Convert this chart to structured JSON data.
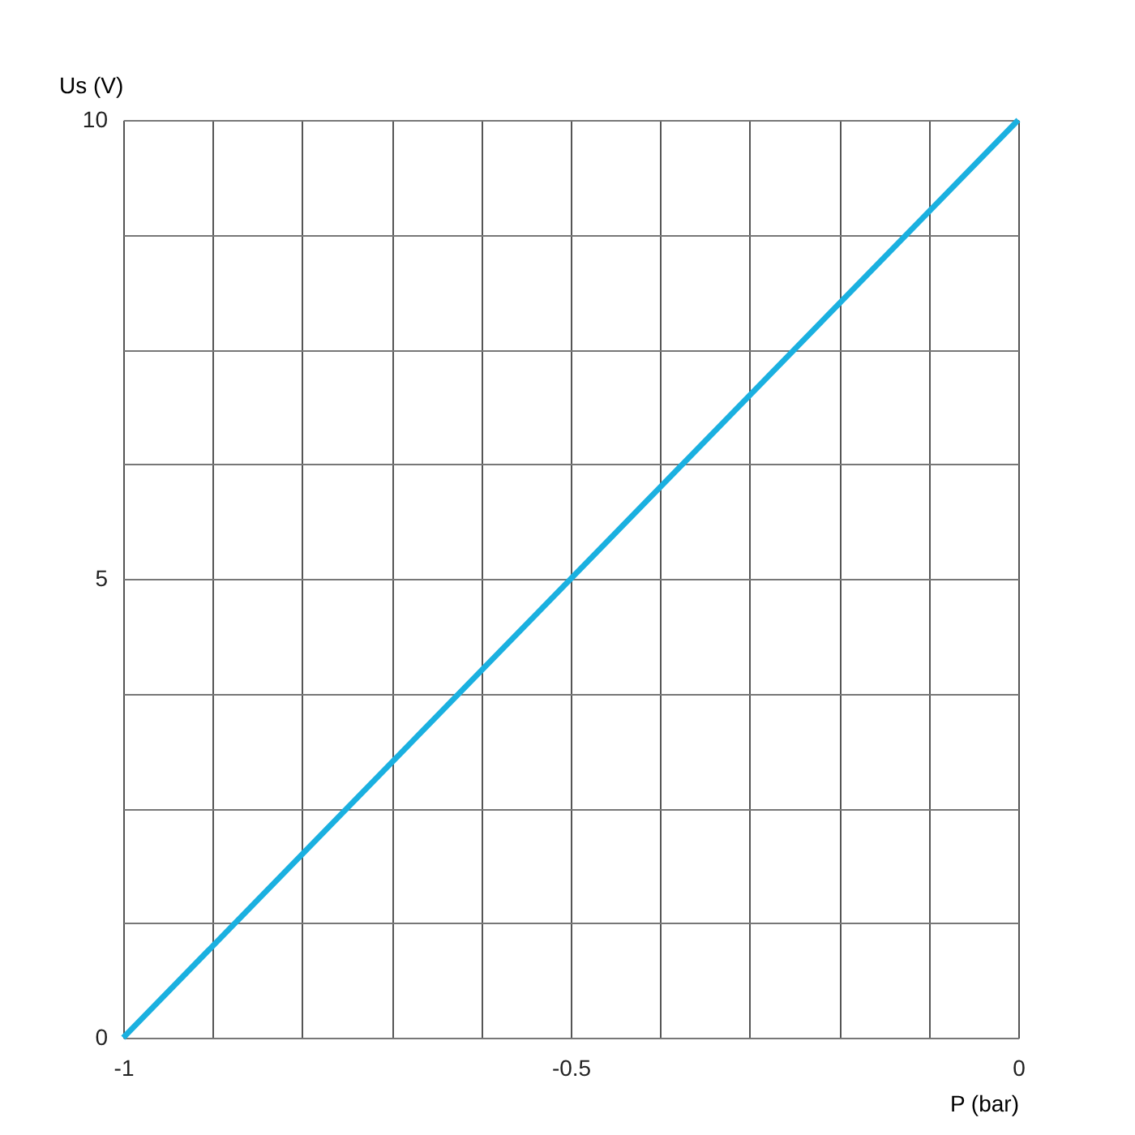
{
  "chart_data": {
    "type": "line",
    "xlabel": "P (bar)",
    "ylabel": "Us (V)",
    "x": [
      -1,
      0
    ],
    "series": [
      {
        "color": "#1ab0e0",
        "values": [
          0,
          10
        ]
      }
    ],
    "xlim": [
      -1,
      0
    ],
    "ylim": [
      0,
      10
    ],
    "xticks": [
      -1,
      {
        "value": -0.9,
        "label": null
      },
      {
        "value": -0.8,
        "label": null
      },
      {
        "value": -0.7,
        "label": null
      },
      {
        "value": -0.6,
        "label": null
      },
      -0.5,
      {
        "value": -0.4,
        "label": null
      },
      {
        "value": -0.3,
        "label": null
      },
      {
        "value": -0.2,
        "label": null
      },
      {
        "value": -0.1,
        "label": null
      },
      0
    ],
    "yticks": [
      0,
      {
        "value": 1.25,
        "label": null
      },
      {
        "value": 2.5,
        "label": null
      },
      {
        "value": 3.75,
        "label": null
      },
      5,
      {
        "value": 6.25,
        "label": null
      },
      {
        "value": 7.5,
        "label": null
      },
      {
        "value": 8.75,
        "label": null
      },
      10
    ],
    "grid": true,
    "marker": "none",
    "line_style": "solid"
  }
}
